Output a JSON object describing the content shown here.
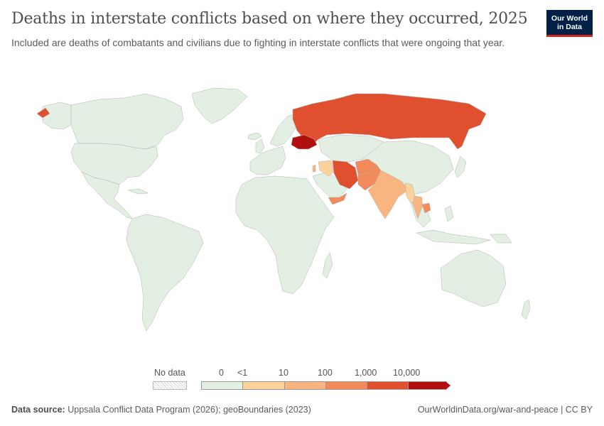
{
  "header": {
    "title": "Deaths in interstate conflicts based on where they occurred, 2025",
    "subtitle": "Included are deaths of combatants and civilians due to fighting in interstate conflicts that were ongoing that year."
  },
  "logo": {
    "line1": "Our World",
    "line2": "in Data",
    "bg_color": "#002147",
    "accent_color": "#ce261e"
  },
  "legend": {
    "no_data_label": "No data",
    "bins": [
      {
        "label": "0",
        "color": "#e2efe2"
      },
      {
        "label": "<1",
        "color": "#fdd19a"
      },
      {
        "label": "10",
        "color": "#f8b57f"
      },
      {
        "label": "100",
        "color": "#f28a5b"
      },
      {
        "label": "1,000",
        "color": "#e0502f"
      },
      {
        "label": "10,000",
        "color": "#b10e0e"
      }
    ]
  },
  "map_data": {
    "metric": "Deaths in interstate conflicts",
    "year": 2025,
    "countries": [
      {
        "name": "Ukraine",
        "bin": "10,000+"
      },
      {
        "name": "Russia",
        "bin": "1,000–10,000"
      },
      {
        "name": "Iran",
        "bin": "1,000–10,000"
      },
      {
        "name": "Afghanistan",
        "bin": "100–1,000"
      },
      {
        "name": "Pakistan",
        "bin": "100–1,000"
      },
      {
        "name": "Yemen",
        "bin": "100–1,000"
      },
      {
        "name": "Cambodia",
        "bin": "100–1,000"
      },
      {
        "name": "India",
        "bin": "10–100"
      },
      {
        "name": "Israel",
        "bin": "10–100"
      },
      {
        "name": "Thailand",
        "bin": "10–100"
      },
      {
        "name": "Iraq",
        "bin": "<1–10"
      },
      {
        "name": "Myanmar",
        "bin": "<1–10"
      }
    ]
  },
  "footer": {
    "source_label": "Data source:",
    "source_text": "Uppsala Conflict Data Program (2026); geoBoundaries (2023)",
    "link_text": "OurWorldinData.org/war-and-peace | CC BY"
  }
}
